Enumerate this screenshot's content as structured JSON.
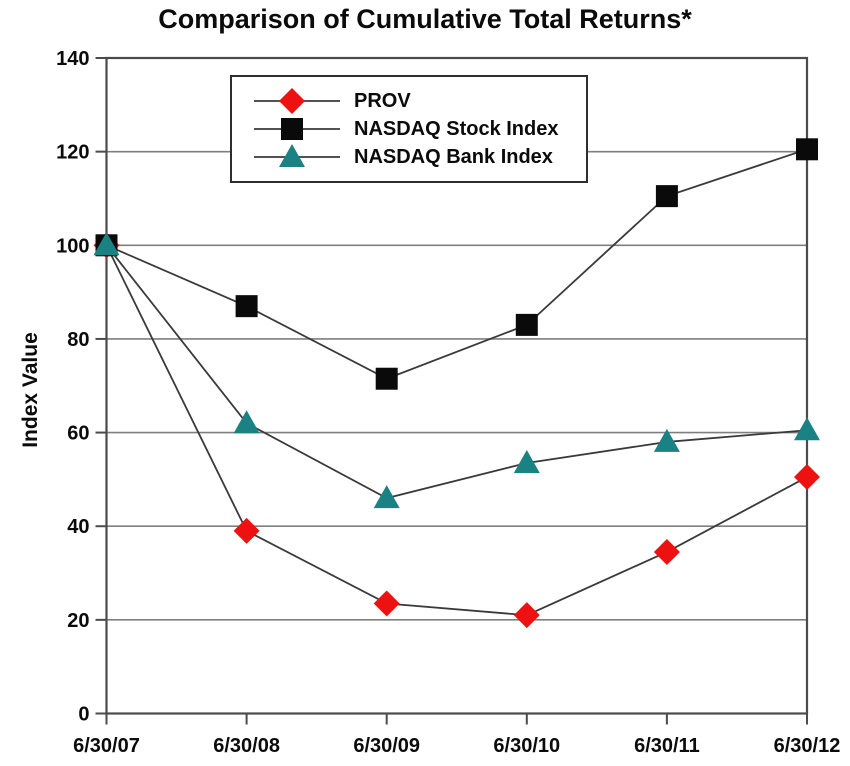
{
  "chart_data": {
    "type": "line",
    "title": "Comparison of Cumulative Total Returns*",
    "xlabel": "",
    "ylabel": "Index Value",
    "ylim": [
      0,
      140
    ],
    "ytick_step": 20,
    "yticks": [
      0,
      20,
      40,
      60,
      80,
      100,
      120,
      140
    ],
    "grid": "horizontal",
    "legend_position": "top-left-inside",
    "categories": [
      "6/30/07",
      "6/30/08",
      "6/30/09",
      "6/30/10",
      "6/30/11",
      "6/30/12"
    ],
    "series": [
      {
        "name": "PROV",
        "marker": "diamond",
        "color": "#ee1111",
        "values": [
          100,
          39,
          23.5,
          21,
          34.5,
          50.5
        ]
      },
      {
        "name": "NASDAQ Stock Index",
        "marker": "square",
        "color": "#0a0a0a",
        "values": [
          100,
          87,
          71.5,
          83,
          110.5,
          120.5
        ]
      },
      {
        "name": "NASDAQ Bank Index",
        "marker": "triangle",
        "color": "#1a8283",
        "values": [
          100,
          62,
          46,
          53.5,
          58,
          60.5
        ]
      }
    ],
    "line_color": "#3a3a3a",
    "grid_color": "#7f7f7f",
    "axis_color": "#4b4b4b",
    "text_color": "#0b0b0b"
  }
}
